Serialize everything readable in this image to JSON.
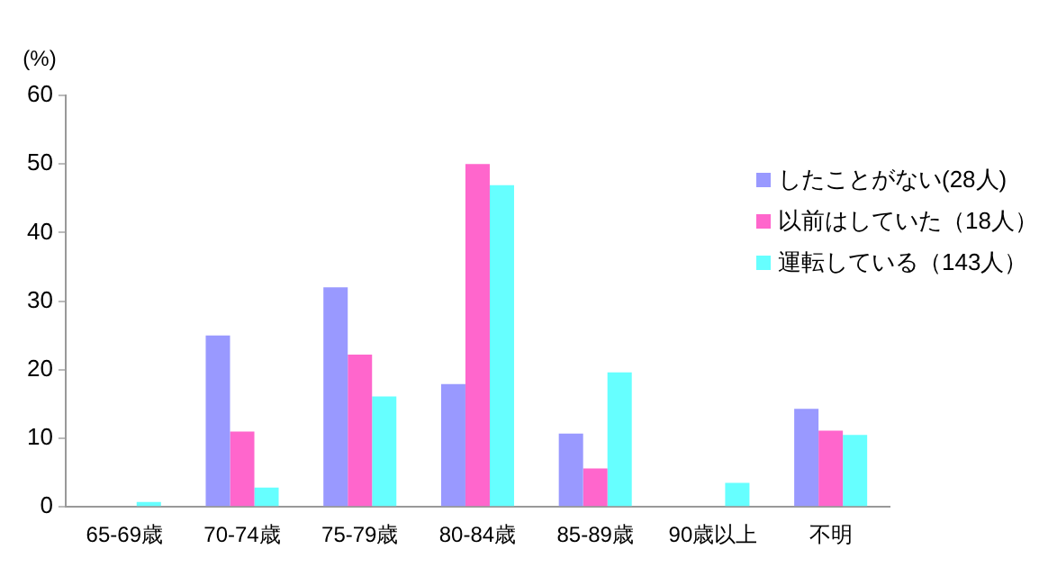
{
  "chart_data": {
    "type": "bar",
    "ylabel": "(%)",
    "categories": [
      "65-69歳",
      "70-74歳",
      "75-79歳",
      "80-84歳",
      "85-89歳",
      "90歳以上",
      "不明"
    ],
    "series": [
      {
        "name": "したことがない(28人)",
        "color": "#9999ff",
        "values": [
          0,
          25,
          32,
          17.9,
          10.7,
          0,
          14.3
        ]
      },
      {
        "name": "以前はしていた（18人）",
        "color": "#ff66cc",
        "values": [
          0,
          11,
          22.2,
          50,
          5.6,
          0,
          11.1
        ]
      },
      {
        "name": "運転している（143人）",
        "color": "#66ffff",
        "values": [
          0.7,
          2.8,
          16.1,
          46.9,
          19.6,
          3.5,
          10.5
        ]
      }
    ],
    "ylim": [
      0,
      60
    ],
    "yticks": [
      0,
      10,
      20,
      30,
      40,
      50,
      60
    ],
    "grid": false,
    "legend": "right"
  }
}
